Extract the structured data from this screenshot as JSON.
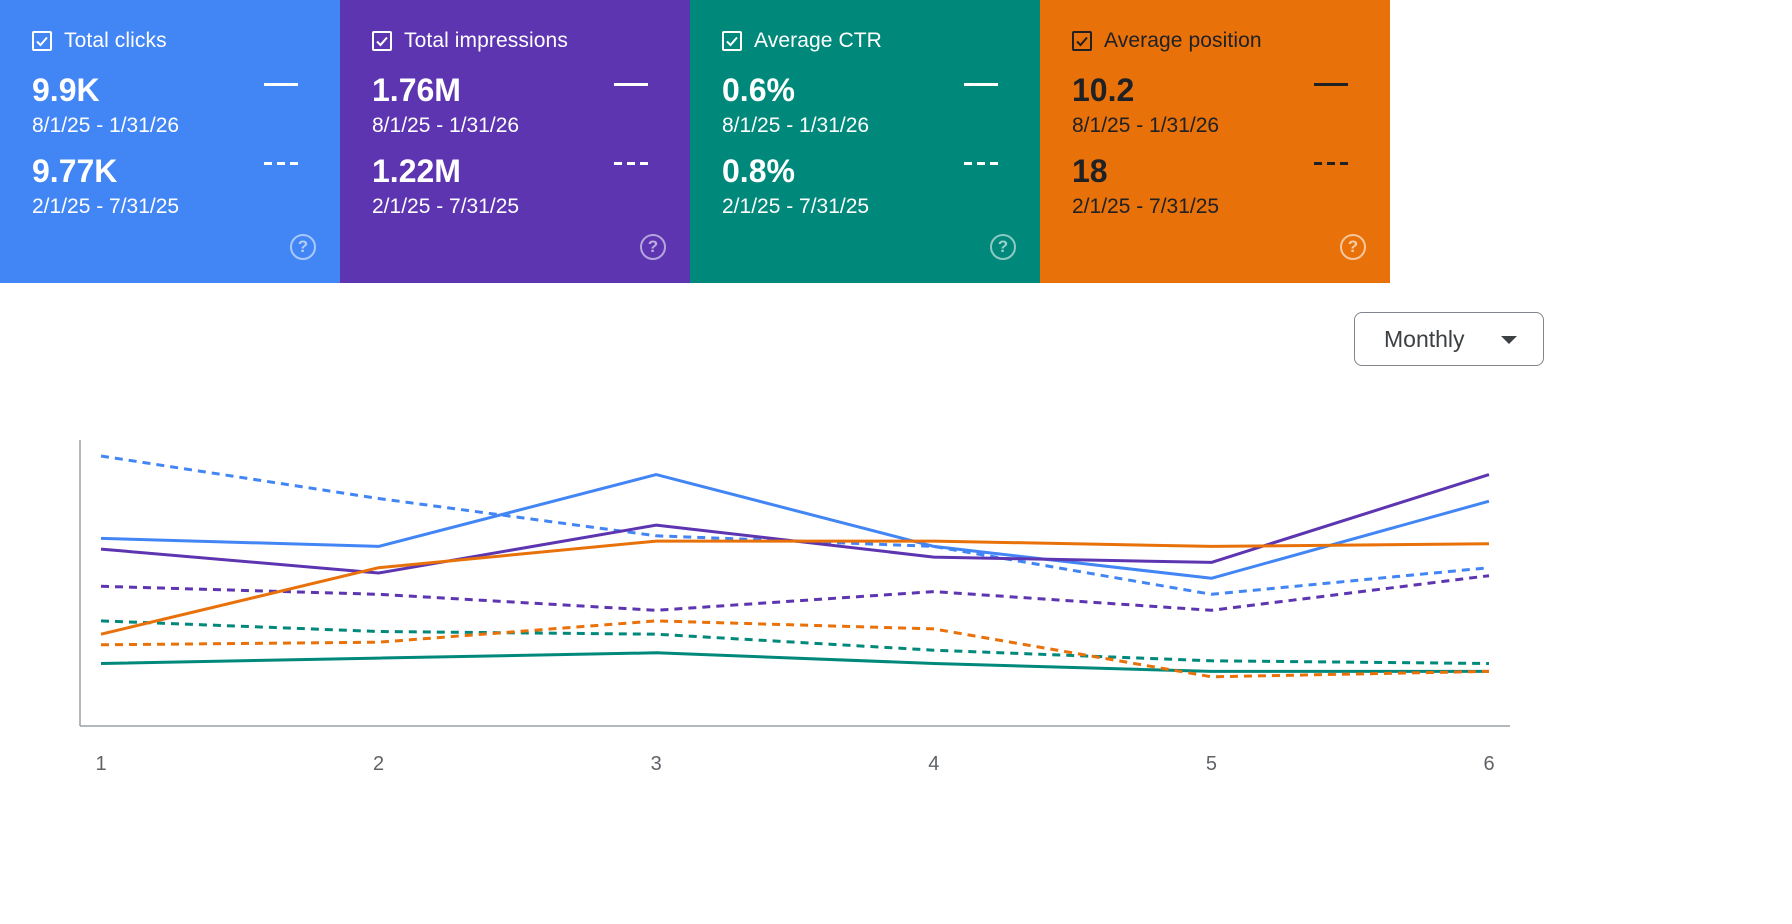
{
  "metrics": [
    {
      "label": "Total clicks",
      "current_value": "9.9K",
      "current_range": "8/1/25 - 1/31/26",
      "previous_value": "9.77K",
      "previous_range": "2/1/25 - 7/31/25",
      "color": "#4285f4"
    },
    {
      "label": "Total impressions",
      "current_value": "1.76M",
      "current_range": "8/1/25 - 1/31/26",
      "previous_value": "1.22M",
      "previous_range": "2/1/25 - 7/31/25",
      "color": "#5e35b1"
    },
    {
      "label": "Average CTR",
      "current_value": "0.6%",
      "current_range": "8/1/25 - 1/31/26",
      "previous_value": "0.8%",
      "previous_range": "2/1/25 - 7/31/25",
      "color": "#00897b"
    },
    {
      "label": "Average position",
      "current_value": "10.2",
      "current_range": "8/1/25 - 1/31/26",
      "previous_value": "18",
      "previous_range": "2/1/25 - 7/31/25",
      "color": "#e8710a"
    }
  ],
  "help_glyph": "?",
  "period_select": {
    "selected": "Monthly"
  },
  "chart_data": {
    "type": "line",
    "x": [
      1,
      2,
      3,
      4,
      5,
      6
    ],
    "tick_labels": [
      "1",
      "2",
      "3",
      "4",
      "5",
      "6"
    ],
    "ylim": [
      0,
      100
    ],
    "grid": false,
    "normalized": true,
    "series": [
      {
        "name": "Total clicks",
        "style": "solid",
        "color": "#4285f4",
        "values": [
          66,
          63,
          90,
          63,
          51,
          80
        ]
      },
      {
        "name": "Total clicks",
        "style": "dashed",
        "color": "#4285f4",
        "values": [
          97,
          81,
          67,
          63,
          45,
          55
        ]
      },
      {
        "name": "Total impressions",
        "style": "solid",
        "color": "#5e35b1",
        "values": [
          62,
          53,
          71,
          59,
          57,
          90
        ]
      },
      {
        "name": "Total impressions",
        "style": "dashed",
        "color": "#5e35b1",
        "values": [
          48,
          45,
          39,
          46,
          39,
          52
        ]
      },
      {
        "name": "Average CTR",
        "style": "solid",
        "color": "#00897b",
        "values": [
          19,
          21,
          23,
          19,
          16,
          16
        ]
      },
      {
        "name": "Average CTR",
        "style": "dashed",
        "color": "#00897b",
        "values": [
          35,
          31,
          30,
          24,
          20,
          19
        ]
      },
      {
        "name": "Average position",
        "style": "solid",
        "color": "#e8710a",
        "values": [
          30,
          55,
          65,
          65,
          63,
          64
        ]
      },
      {
        "name": "Average position",
        "style": "dashed",
        "color": "#e8710a",
        "values": [
          26,
          27,
          35,
          32,
          14,
          16
        ]
      }
    ]
  }
}
